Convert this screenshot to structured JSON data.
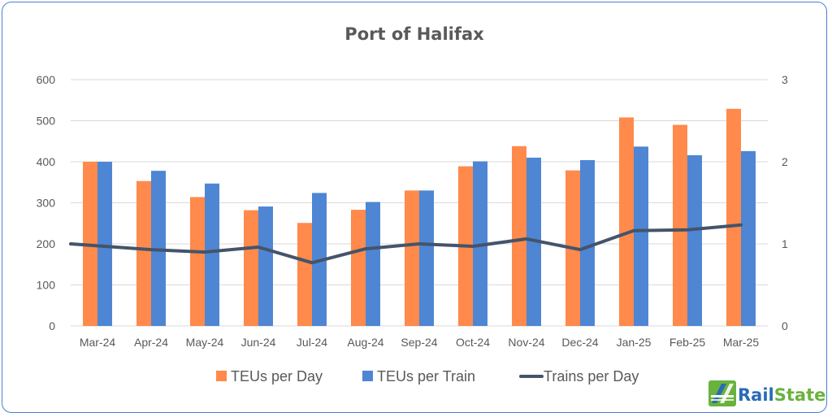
{
  "chart_data": {
    "type": "bar",
    "title": "Port of Halifax",
    "categories": [
      "Mar-24",
      "Apr-24",
      "May-24",
      "Jun-24",
      "Jul-24",
      "Aug-24",
      "Sep-24",
      "Oct-24",
      "Nov-24",
      "Dec-24",
      "Jan-25",
      "Feb-25",
      "Mar-25"
    ],
    "series": [
      {
        "name": "TEUs per Day",
        "kind": "bar",
        "axis": "left",
        "color": "#ff8a4c",
        "values": [
          400,
          353,
          314,
          282,
          251,
          283,
          330,
          389,
          438,
          379,
          508,
          490,
          529
        ]
      },
      {
        "name": "TEUs per Train",
        "kind": "bar",
        "axis": "left",
        "color": "#4e86d4",
        "values": [
          400,
          378,
          347,
          291,
          324,
          302,
          330,
          401,
          410,
          404,
          437,
          416,
          426
        ]
      },
      {
        "name": "Trains per Day",
        "kind": "line",
        "axis": "right",
        "color": "#44546a",
        "values": [
          1.0,
          0.93,
          0.9,
          0.96,
          0.77,
          0.94,
          1.0,
          0.97,
          1.06,
          0.93,
          1.16,
          1.17,
          1.23
        ]
      }
    ],
    "y_left": {
      "min": 0,
      "max": 600,
      "ticks": [
        "0",
        "100",
        "200",
        "300",
        "400",
        "500",
        "600"
      ]
    },
    "y_right": {
      "min": 0,
      "max": 3,
      "ticks": [
        "0",
        "1",
        "2",
        "3"
      ]
    },
    "grid": true,
    "legend": "bottom"
  },
  "brand": {
    "name": "RailState",
    "icon": "railstate-logo-icon",
    "green": "#6ab23e",
    "blue": "#2a6bb5"
  }
}
